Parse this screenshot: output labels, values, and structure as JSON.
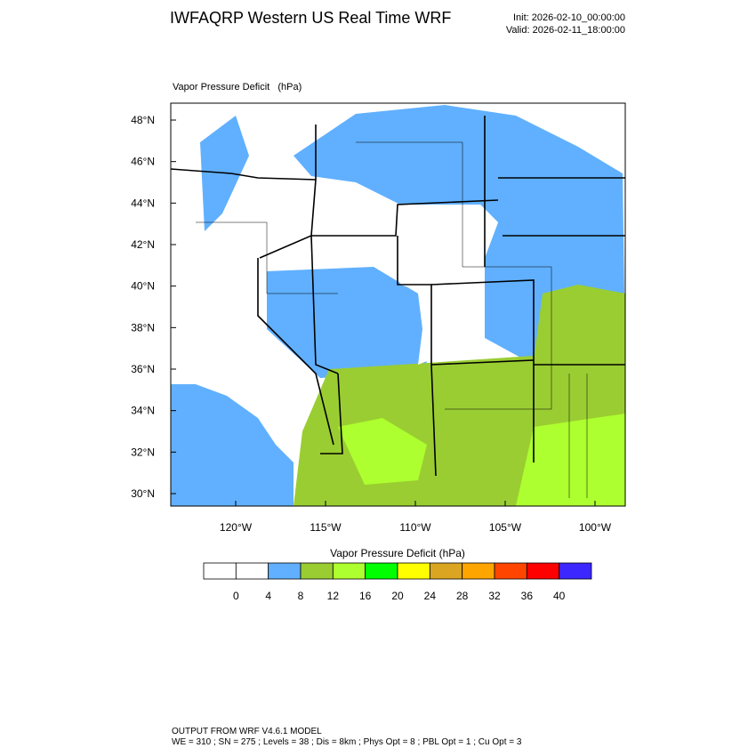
{
  "header": {
    "title": "IWFAQRP Western US Real Time WRF",
    "init": "Init: 2026-02-10_00:00:00",
    "valid": "Valid: 2026-02-11_18:00:00"
  },
  "map": {
    "field_label": "Vapor Pressure Deficit   (hPa)",
    "lat_ticks": [
      {
        "value": 48,
        "label": "48°N"
      },
      {
        "value": 46,
        "label": "46°N"
      },
      {
        "value": 44,
        "label": "44°N"
      },
      {
        "value": 42,
        "label": "42°N"
      },
      {
        "value": 40,
        "label": "40°N"
      },
      {
        "value": 38,
        "label": "38°N"
      },
      {
        "value": 36,
        "label": "36°N"
      },
      {
        "value": 34,
        "label": "34°N"
      },
      {
        "value": 32,
        "label": "32°N"
      },
      {
        "value": 30,
        "label": "30°N"
      }
    ],
    "lon_ticks": [
      {
        "value": 120,
        "label": "120°W"
      },
      {
        "value": 115,
        "label": "115°W"
      },
      {
        "value": 110,
        "label": "110°W"
      },
      {
        "value": 105,
        "label": "105°W"
      },
      {
        "value": 100,
        "label": "100°W"
      }
    ]
  },
  "colorbar": {
    "title": "Vapor Pressure Deficit  (hPa)",
    "colors": [
      "#ffffff",
      "#ffffff",
      "#60b0ff",
      "#9acd32",
      "#adff2f",
      "#00ff00",
      "#ffff00",
      "#daa520",
      "#ffa500",
      "#ff4500",
      "#ff0000",
      "#3c28ff"
    ],
    "levels": [
      0,
      4,
      8,
      12,
      16,
      20,
      24,
      28,
      32,
      36,
      40
    ]
  },
  "footer": {
    "line1": "OUTPUT FROM WRF V4.6.1 MODEL",
    "line2": "WE = 310 ; SN = 275 ; Levels = 38 ; Dis = 8km ; Phys Opt = 8 ; PBL Opt = 1 ; Cu Opt = 3"
  }
}
